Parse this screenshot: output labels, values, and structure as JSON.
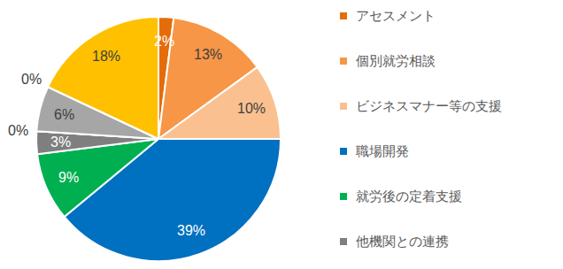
{
  "chart_data": {
    "type": "pie",
    "categories": [
      "アセスメント",
      "個別就労相談",
      "ビジネスマナー等の支援",
      "職場開発",
      "就労後の定着支援",
      "他機関との連携",
      null,
      null,
      null,
      null
    ],
    "values": [
      2,
      13,
      10,
      39,
      9,
      3,
      0,
      6,
      0,
      18
    ],
    "value_labels": [
      "2%",
      "13%",
      "10%",
      "39%",
      "9%",
      "3%",
      "0%",
      "6%",
      "0%",
      "18%"
    ],
    "colors": [
      "#E46C0A",
      "#F79646",
      "#FAC090",
      "#0070C0",
      "#00B050",
      "#7F7F7F",
      "#5B9BD5",
      "#A6A6A6",
      "#FFD966",
      "#FFC000"
    ],
    "data_labels": true,
    "legend": "right"
  }
}
